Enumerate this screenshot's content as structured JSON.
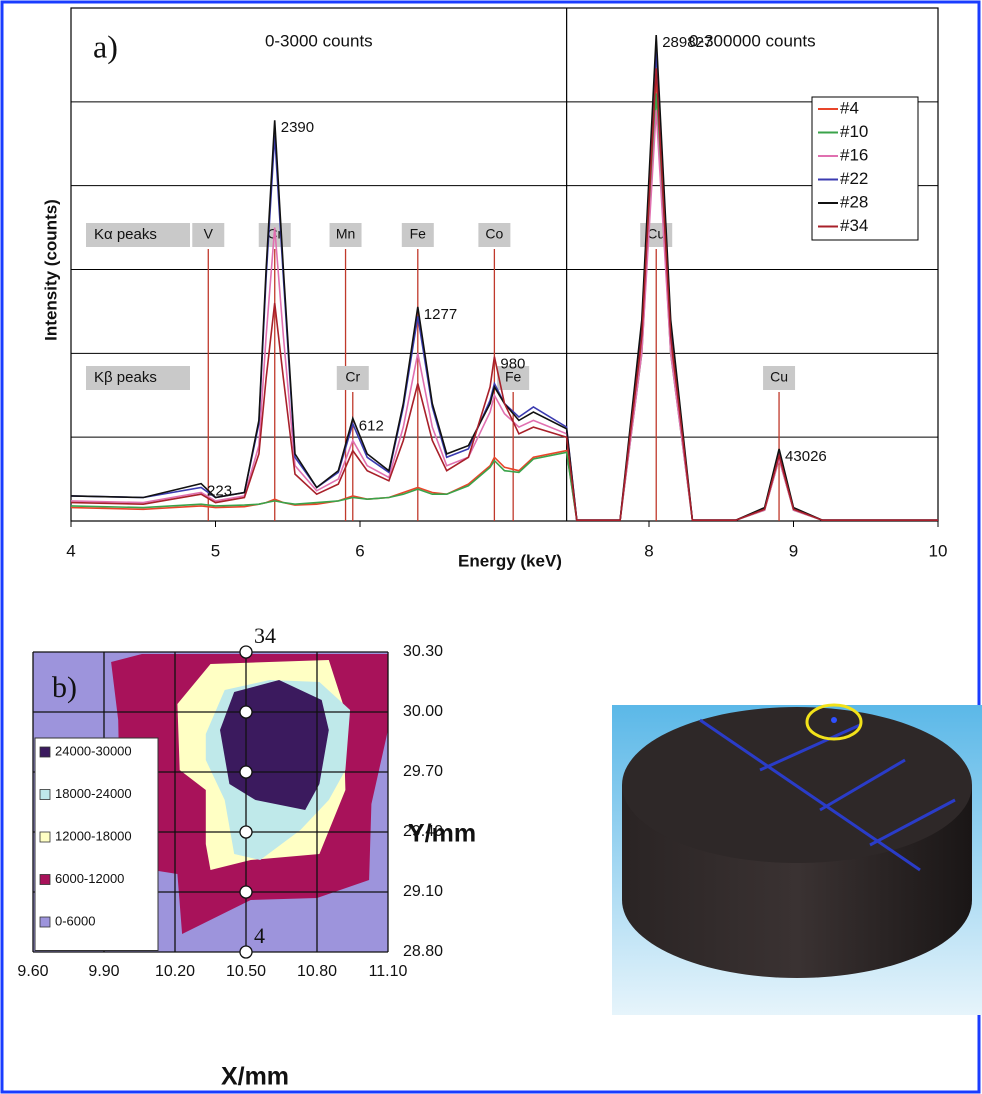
{
  "chart_data": [
    {
      "type": "line",
      "panel_label": "a)",
      "xlabel": "Energy (keV)",
      "ylabel": "Intensity (counts)",
      "xlim": [
        4,
        10
      ],
      "xticks": [
        4,
        5,
        6,
        8,
        9,
        10
      ],
      "grid": true,
      "legend": "upper right",
      "panels": [
        {
          "title": "0-3000 counts",
          "xlim": [
            4,
            7.43
          ],
          "ylim": [
            0,
            3000
          ],
          "yticks": [
            0,
            500,
            1000,
            1500,
            2000,
            2500
          ]
        },
        {
          "title": "0-300000 counts",
          "xlim": [
            7.43,
            10
          ],
          "ylim": [
            0,
            300000
          ],
          "yticks": [
            0,
            50000,
            100000,
            150000,
            200000,
            250000
          ]
        }
      ],
      "x": [
        4.0,
        4.5,
        4.9,
        5.0,
        5.2,
        5.3,
        5.35,
        5.41,
        5.47,
        5.55,
        5.7,
        5.85,
        5.95,
        6.05,
        6.2,
        6.3,
        6.4,
        6.5,
        6.6,
        6.75,
        6.9,
        6.93,
        7.0,
        7.1,
        7.2,
        7.43,
        7.5,
        7.8,
        7.95,
        8.05,
        8.15,
        8.3,
        8.6,
        8.8,
        8.9,
        9.0,
        9.2,
        9.5,
        10.0
      ],
      "series": [
        {
          "name": "#4",
          "color": "#e8452a",
          "labeled_points": [],
          "values": [
            80,
            70,
            90,
            80,
            85,
            100,
            110,
            130,
            110,
            95,
            100,
            120,
            150,
            130,
            140,
            170,
            200,
            170,
            160,
            220,
            330,
            380,
            320,
            300,
            380,
            420,
            500,
            500,
            105000,
            265000,
            105000,
            500,
            500,
            7000,
            38000,
            7000,
            500,
            500,
            500
          ]
        },
        {
          "name": "#10",
          "color": "#3aa34a",
          "labeled_points": [],
          "values": [
            90,
            80,
            100,
            90,
            95,
            100,
            110,
            120,
            110,
            100,
            110,
            120,
            140,
            130,
            140,
            160,
            190,
            160,
            160,
            210,
            320,
            360,
            300,
            290,
            370,
            410,
            500,
            500,
            100000,
            255000,
            100000,
            500,
            500,
            6500,
            37000,
            6500,
            500,
            500,
            500
          ]
        },
        {
          "name": "#16",
          "color": "#e070b0",
          "labeled_points": [],
          "values": [
            120,
            110,
            170,
            120,
            150,
            450,
            1100,
            1750,
            1100,
            330,
            180,
            250,
            480,
            330,
            260,
            560,
            1000,
            560,
            330,
            380,
            650,
            750,
            640,
            560,
            600,
            520,
            500,
            500,
            100000,
            245000,
            100000,
            500,
            500,
            6500,
            37000,
            6500,
            500,
            500,
            500
          ]
        },
        {
          "name": "#22",
          "color": "#3b3bb0",
          "labeled_points": [],
          "values": [
            150,
            140,
            200,
            140,
            170,
            580,
            1450,
            2300,
            1450,
            380,
            200,
            290,
            580,
            380,
            290,
            680,
            1220,
            680,
            380,
            430,
            720,
            820,
            700,
            620,
            680,
            560,
            500,
            500,
            115000,
            280000,
            115000,
            500,
            500,
            7500,
            41000,
            7500,
            500,
            500,
            500
          ]
        },
        {
          "name": "#28",
          "color": "#111111",
          "labeled_points": [
            2,
            7,
            12,
            16,
            29,
            34
          ],
          "values": [
            150,
            140,
            223,
            140,
            170,
            600,
            1500,
            2390,
            1500,
            400,
            200,
            300,
            612,
            400,
            300,
            700,
            1277,
            700,
            400,
            450,
            700,
            800,
            700,
            600,
            650,
            550,
            500,
            500,
            120000,
            289827,
            120000,
            500,
            500,
            8000,
            43026,
            8000,
            500,
            500,
            500
          ]
        },
        {
          "name": "#34",
          "color": "#a8202a",
          "labeled_points": [
            21
          ],
          "values": [
            110,
            100,
            160,
            110,
            140,
            400,
            850,
            1300,
            850,
            280,
            160,
            220,
            420,
            300,
            240,
            480,
            820,
            480,
            300,
            380,
            800,
            980,
            700,
            520,
            560,
            500,
            500,
            500,
            110000,
            270000,
            110000,
            500,
            500,
            7000,
            39000,
            7000,
            500,
            500,
            500
          ]
        }
      ],
      "peak_rows": [
        {
          "label": "Kα peaks",
          "lines": [
            {
              "element": "V",
              "energy": 4.95
            },
            {
              "element": "Cr",
              "energy": 5.41
            },
            {
              "element": "Mn",
              "energy": 5.9
            },
            {
              "element": "Fe",
              "energy": 6.4
            },
            {
              "element": "Co",
              "energy": 6.93
            },
            {
              "element": "Cu",
              "energy": 8.05
            }
          ]
        },
        {
          "label": "Kβ peaks",
          "lines": [
            {
              "element": "Cr",
              "energy": 5.95
            },
            {
              "element": "Fe",
              "energy": 7.06
            },
            {
              "element": "Cu",
              "energy": 8.9
            }
          ]
        }
      ]
    },
    {
      "type": "contour",
      "panel_label": "b)",
      "xlabel": "X/mm",
      "ylabel": "Y/mm",
      "xlim": [
        9.6,
        11.1
      ],
      "ylim": [
        28.8,
        30.3
      ],
      "grid": true,
      "legend": "lower left",
      "xticks": [
        {
          "value": 9.6,
          "label": "9.60"
        },
        {
          "value": 9.9,
          "label": "9.90"
        },
        {
          "value": 10.2,
          "label": "10.20"
        },
        {
          "value": 10.5,
          "label": "10.50"
        },
        {
          "value": 10.8,
          "label": "10.80"
        },
        {
          "value": 11.1,
          "label": "11.10"
        }
      ],
      "yticks": [
        {
          "value": 28.8,
          "label": "28.80"
        },
        {
          "value": 29.1,
          "label": "29.10"
        },
        {
          "value": 29.4,
          "label": "29.40"
        },
        {
          "value": 29.7,
          "label": "29.70"
        },
        {
          "value": 30.0,
          "label": "30.00"
        },
        {
          "value": 30.3,
          "label": "30.30"
        }
      ],
      "regions": [
        {
          "name": "24000-30000",
          "color": "#3b1a5e",
          "x": [
            10.39,
            10.45,
            10.64,
            10.82,
            10.85,
            10.81,
            10.75,
            10.54,
            10.43
          ],
          "y": [
            29.91,
            30.1,
            30.16,
            30.06,
            29.91,
            29.64,
            29.51,
            29.56,
            29.64
          ]
        },
        {
          "name": "18000-24000",
          "color": "#bfe9ea",
          "x": [
            10.33,
            10.41,
            10.6,
            10.81,
            10.94,
            10.92,
            10.85,
            10.73,
            10.56,
            10.45,
            10.41,
            10.33
          ],
          "y": [
            29.89,
            30.11,
            30.16,
            30.15,
            30.01,
            29.71,
            29.56,
            29.41,
            29.26,
            29.29,
            29.56,
            29.76
          ]
        },
        {
          "name": "12000-18000",
          "color": "#ffffc4",
          "x": [
            10.21,
            10.35,
            10.85,
            10.91,
            10.92,
            10.81,
            10.52,
            10.35,
            10.33,
            10.33,
            10.22
          ],
          "y": [
            30.04,
            30.24,
            30.26,
            30.04,
            29.61,
            29.29,
            29.26,
            29.21,
            29.34,
            29.61,
            29.71
          ]
        },
        {
          "name": "6000-12000",
          "color": "#a8125a",
          "x": [
            9.93,
            10.06,
            11.1,
            11.1,
            11.03,
            11.02,
            10.8,
            10.52,
            10.23,
            10.21,
            10.05,
            9.97,
            9.96
          ],
          "y": [
            30.25,
            30.29,
            30.29,
            29.91,
            29.54,
            29.16,
            29.07,
            29.06,
            28.89,
            29.19,
            29.22,
            29.36,
            29.96
          ]
        },
        {
          "name": "0-6000",
          "color": "#9d94dc",
          "x": [
            9.6,
            11.1,
            11.1,
            9.6
          ],
          "y": [
            30.3,
            30.3,
            28.8,
            28.8
          ]
        }
      ],
      "scan": {
        "x": [
          10.5,
          10.5,
          10.5,
          10.5,
          10.5,
          10.5
        ],
        "y": [
          30.3,
          30.0,
          29.7,
          29.4,
          29.1,
          28.8
        ],
        "labels": [
          "34",
          null,
          null,
          null,
          null,
          "4"
        ]
      }
    }
  ]
}
